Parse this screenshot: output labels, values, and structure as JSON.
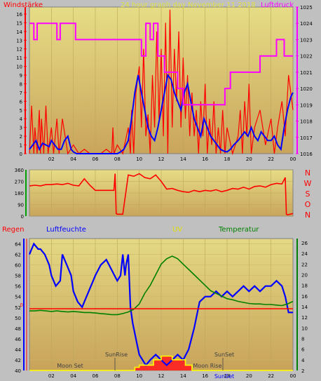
{
  "chart_data": [
    {
      "type": "line",
      "title": "24 hour graph day   November 11 2018",
      "left_label": "Windstärke",
      "right_label": "Luftdruck",
      "x_ticks": [
        "02",
        "04",
        "06",
        "08",
        "10",
        "12",
        "14",
        "16",
        "18",
        "20",
        "22",
        "00"
      ],
      "y_left_ticks": [
        0,
        1,
        2,
        3,
        4,
        5,
        6,
        7,
        8,
        9,
        10,
        11,
        12,
        13,
        14,
        15,
        16
      ],
      "y_right_ticks": [
        "1016",
        "1017",
        "1018",
        "1019",
        "1020",
        "1021",
        "1022",
        "1023",
        "1024",
        "1025"
      ],
      "ylim_left": [
        0,
        16.8
      ],
      "ylim_right": [
        1016,
        1025
      ],
      "series": [
        {
          "color": "#ff0000",
          "x": [
            0,
            0.2,
            0.4,
            0.5,
            0.7,
            0.9,
            1.0,
            1.1,
            1.2,
            1.3,
            1.5,
            1.7,
            2.0,
            2.2,
            2.5,
            2.7,
            3.0,
            3.5,
            4.0,
            4.5,
            5.0,
            5.5,
            6.0,
            6.5,
            7.0,
            7.5,
            7.6,
            7.7,
            8.0,
            8.5,
            9.0,
            9.2,
            9.3,
            9.5,
            9.7,
            10.0,
            10.2,
            10.4,
            10.6,
            10.8,
            11.0,
            11.2,
            11.4,
            11.6,
            11.8,
            12.0,
            12.2,
            12.4,
            12.6,
            12.8,
            13.0,
            13.2,
            13.4,
            13.6,
            13.8,
            14.0,
            14.2,
            14.4,
            14.6,
            14.8,
            15.0,
            15.2,
            15.4,
            15.6,
            15.8,
            16.0,
            16.2,
            16.4,
            16.6,
            16.8,
            17.0,
            17.2,
            17.4,
            17.6,
            17.8,
            18.0,
            18.5,
            19.0,
            19.2,
            19.4,
            19.6,
            19.8,
            20.0,
            20.2,
            20.5,
            21.0,
            21.5,
            22.0,
            22.3,
            22.6,
            23.0,
            23.3,
            23.6,
            24.0
          ],
          "values": [
            0,
            5.5,
            0,
            3,
            0,
            5,
            0,
            4,
            2,
            0,
            5.5,
            0,
            3,
            0,
            4,
            0,
            4,
            0,
            1,
            0,
            0.5,
            0,
            0,
            0,
            0.5,
            0,
            3,
            0,
            1,
            0,
            3,
            0,
            5,
            0,
            7,
            10,
            3,
            12,
            2,
            4.5,
            0,
            9,
            3,
            14,
            4,
            12,
            2,
            15,
            0,
            16.5,
            3,
            12,
            6,
            14,
            3,
            11,
            4,
            9,
            2,
            7,
            2,
            5,
            0,
            6,
            2,
            8,
            0,
            4,
            1,
            6,
            0,
            3,
            0,
            5,
            0,
            3,
            0,
            2,
            5,
            0,
            6,
            2,
            8,
            0,
            3,
            5,
            1,
            4,
            0,
            3,
            6,
            2,
            9,
            5
          ]
        },
        {
          "color": "#0000ff",
          "x": [
            0,
            0.3,
            0.6,
            0.9,
            1.2,
            1.5,
            1.8,
            2.0,
            2.3,
            2.6,
            2.9,
            3.2,
            3.5,
            3.8,
            4.0,
            4.3,
            4.6,
            5.0,
            5.5,
            6.0,
            6.5,
            7.0,
            7.5,
            8.0,
            8.3,
            8.6,
            9.0,
            9.3,
            9.6,
            9.9,
            10.2,
            10.5,
            10.8,
            11.1,
            11.4,
            11.7,
            12.0,
            12.3,
            12.6,
            12.9,
            13.2,
            13.5,
            13.8,
            14.1,
            14.4,
            14.7,
            15.0,
            15.3,
            15.6,
            15.9,
            16.2,
            16.5,
            16.8,
            17.1,
            17.4,
            17.7,
            18.0,
            18.3,
            18.6,
            19.0,
            19.3,
            19.6,
            19.9,
            20.2,
            20.5,
            20.8,
            21.1,
            21.4,
            21.7,
            22.0,
            22.3,
            22.6,
            22.9,
            23.2,
            23.5,
            23.8,
            24.0
          ],
          "values": [
            0.5,
            1,
            1.5,
            0.5,
            1.2,
            1,
            0.8,
            1.5,
            1,
            0.5,
            0.5,
            1.5,
            2,
            0.5,
            0.2,
            0,
            0,
            0,
            0,
            0,
            0,
            0,
            0,
            0,
            0.2,
            0.5,
            1.5,
            4,
            7,
            9,
            7,
            5,
            3,
            2,
            1.5,
            3,
            5,
            7,
            9,
            8.5,
            7,
            6,
            5,
            7,
            8,
            6,
            4,
            3,
            2,
            4,
            3,
            2,
            1.5,
            1,
            0.5,
            0.3,
            0.2,
            0.5,
            1,
            1.5,
            2,
            2.5,
            2,
            3,
            2,
            1.5,
            2.5,
            2,
            1.5,
            1.5,
            2,
            1,
            0.5,
            3,
            5,
            6.5,
            7
          ]
        },
        {
          "color": "#ff00ff",
          "x": [
            0,
            0.4,
            0.4,
            0.7,
            0.7,
            2.5,
            2.5,
            2.8,
            2.8,
            4.2,
            4.2,
            5.0,
            5.0,
            10.2,
            10.2,
            10.6,
            10.6,
            11.0,
            11.0,
            11.3,
            11.3,
            11.7,
            11.7,
            12.3,
            12.3,
            13.5,
            13.5,
            14.0,
            14.0,
            15.0,
            15.0,
            17.8,
            17.8,
            18.3,
            18.3,
            19.5,
            19.5,
            21.0,
            21.0,
            22.5,
            22.5,
            23.2,
            23.2,
            24.0
          ],
          "values": [
            1024,
            1024,
            1023,
            1023,
            1024,
            1024,
            1023,
            1023,
            1024,
            1024,
            1023,
            1023,
            1023,
            1023,
            1022,
            1022,
            1024,
            1024,
            1023,
            1023,
            1024,
            1024,
            1022,
            1022,
            1021,
            1021,
            1020,
            1020,
            1019,
            1019,
            1019,
            1019,
            1020,
            1020,
            1021,
            1021,
            1021,
            1021,
            1022,
            1022,
            1023,
            1023,
            1022,
            1022
          ]
        }
      ]
    },
    {
      "type": "line",
      "y_ticks": [
        "360",
        "270",
        "180",
        "90",
        "0"
      ],
      "ylim": [
        0,
        360
      ],
      "direction_labels": [
        "N",
        "W",
        "S",
        "O",
        "N"
      ],
      "series": [
        {
          "color": "#ff0000",
          "x": [
            0,
            0.5,
            1.0,
            1.5,
            2.0,
            2.5,
            3.0,
            3.5,
            4.0,
            4.5,
            5.0,
            5.5,
            6.0,
            6.5,
            7.0,
            7.5,
            7.7,
            7.8,
            7.9,
            8.0,
            8.5,
            9.0,
            9.5,
            10.0,
            10.5,
            11.0,
            11.5,
            12.0,
            12.5,
            13.0,
            13.5,
            14.0,
            14.5,
            15.0,
            15.5,
            16.0,
            16.5,
            17.0,
            17.5,
            18.0,
            18.5,
            19.0,
            19.5,
            20.0,
            20.5,
            21.0,
            21.5,
            22.0,
            22.5,
            23.0,
            23.3,
            23.4,
            23.5,
            24.0
          ],
          "values": [
            235,
            240,
            235,
            245,
            245,
            250,
            245,
            255,
            240,
            235,
            290,
            240,
            200,
            200,
            200,
            200,
            200,
            330,
            20,
            15,
            15,
            320,
            310,
            330,
            300,
            290,
            320,
            270,
            210,
            215,
            200,
            190,
            185,
            200,
            190,
            200,
            195,
            205,
            190,
            200,
            215,
            210,
            225,
            210,
            230,
            235,
            225,
            245,
            255,
            250,
            300,
            15,
            10,
            20
          ]
        }
      ]
    },
    {
      "type": "line",
      "labels": {
        "rain": "Regen",
        "humidity": "Luftfeuchte",
        "uv": "UV",
        "temperature": "Temperatur"
      },
      "y_left_ticks": [
        40,
        42,
        44,
        46,
        48,
        50,
        52,
        54,
        56,
        58,
        60,
        62,
        64
      ],
      "y_right_ticks": [
        2,
        4,
        6,
        8,
        10,
        12,
        14,
        16,
        18,
        20,
        22,
        24,
        26
      ],
      "ylim_left": [
        40,
        65
      ],
      "ylim_right": [
        2,
        26.8
      ],
      "rain_tick": "0",
      "annotations": [
        "Moon Set",
        "SunRise",
        "SunSet",
        "Moon Rise",
        "SunSet"
      ],
      "series": [
        {
          "name": "Luftfeuchte",
          "color": "#0000ff",
          "axis": "left",
          "x": [
            0,
            0.2,
            0.4,
            0.8,
            1.0,
            1.4,
            1.8,
            2.0,
            2.4,
            2.8,
            3.0,
            3.4,
            3.8,
            4.0,
            4.4,
            4.8,
            5.0,
            5.4,
            5.8,
            6.0,
            6.5,
            7.0,
            7.5,
            8.0,
            8.3,
            8.5,
            8.7,
            8.8,
            9.0,
            9.2,
            9.4,
            9.6,
            9.8,
            10.0,
            10.3,
            10.6,
            11.0,
            11.5,
            12.0,
            12.5,
            13.0,
            13.5,
            14.0,
            14.5,
            15.0,
            15.5,
            16.0,
            16.5,
            17.0,
            17.5,
            18.0,
            18.5,
            19.0,
            19.5,
            20.0,
            20.5,
            21.0,
            21.5,
            22.0,
            22.5,
            23.0,
            23.3,
            23.6,
            24.0
          ],
          "values": [
            62,
            63,
            64,
            63,
            63,
            62,
            60,
            58,
            56,
            57,
            62,
            60,
            58,
            55,
            53,
            52,
            53,
            55,
            57,
            58,
            60,
            61,
            59,
            57,
            58,
            62,
            58,
            60,
            62,
            52,
            49,
            47,
            45,
            43,
            42,
            41,
            42,
            43,
            42,
            41,
            42,
            43,
            42,
            44,
            48,
            53,
            54,
            54,
            55,
            54,
            55,
            54,
            55,
            56,
            55,
            56,
            55,
            56,
            56,
            57,
            56,
            54,
            51,
            51
          ]
        },
        {
          "name": "Temperatur",
          "color": "#008000",
          "axis": "right",
          "x": [
            0,
            0.5,
            1.0,
            1.5,
            2.0,
            2.5,
            3.0,
            3.5,
            4.0,
            4.5,
            5.0,
            5.5,
            6.0,
            6.5,
            7.0,
            7.5,
            8.0,
            8.5,
            9.0,
            9.5,
            10.0,
            10.5,
            11.0,
            11.5,
            12.0,
            12.5,
            13.0,
            13.5,
            14.0,
            14.5,
            15.0,
            15.5,
            16.0,
            16.5,
            17.0,
            17.5,
            18.0,
            18.5,
            19.0,
            19.5,
            20.0,
            20.5,
            21.0,
            21.5,
            22.0,
            22.5,
            23.0,
            23.5,
            24.0
          ],
          "values": [
            13.2,
            13.2,
            13.3,
            13.2,
            13.1,
            13.2,
            13.1,
            13.0,
            13.1,
            13.0,
            12.9,
            12.9,
            12.8,
            12.7,
            12.6,
            12.5,
            12.5,
            12.7,
            13.0,
            13.5,
            14.5,
            16.5,
            18.0,
            20.0,
            22.0,
            23.0,
            23.5,
            23.0,
            22.0,
            21.0,
            20.0,
            19.0,
            18.0,
            17.0,
            16.5,
            16.0,
            15.5,
            15.3,
            15.0,
            14.8,
            14.6,
            14.5,
            14.5,
            14.4,
            14.4,
            14.3,
            14.2,
            14.5,
            15.0
          ]
        },
        {
          "name": "UV",
          "color": "#ffff00",
          "axis": "right",
          "x": [
            0,
            9.6,
            9.6,
            10.0,
            10.0,
            11.3,
            11.3,
            12.0,
            12.0,
            13.0,
            13.0,
            14.2,
            14.2,
            14.8,
            14.8,
            24.0
          ],
          "values": [
            2.0,
            2.0,
            2.6,
            2.6,
            3.0,
            3.0,
            4.0,
            4.0,
            4.7,
            4.7,
            4.0,
            4.0,
            3.0,
            3.0,
            2.0,
            2.0
          ]
        },
        {
          "name": "Regen",
          "color": "#ff0000",
          "axis": "left",
          "x": [
            0,
            24
          ],
          "values": [
            51.7,
            51.7
          ]
        }
      ]
    }
  ]
}
